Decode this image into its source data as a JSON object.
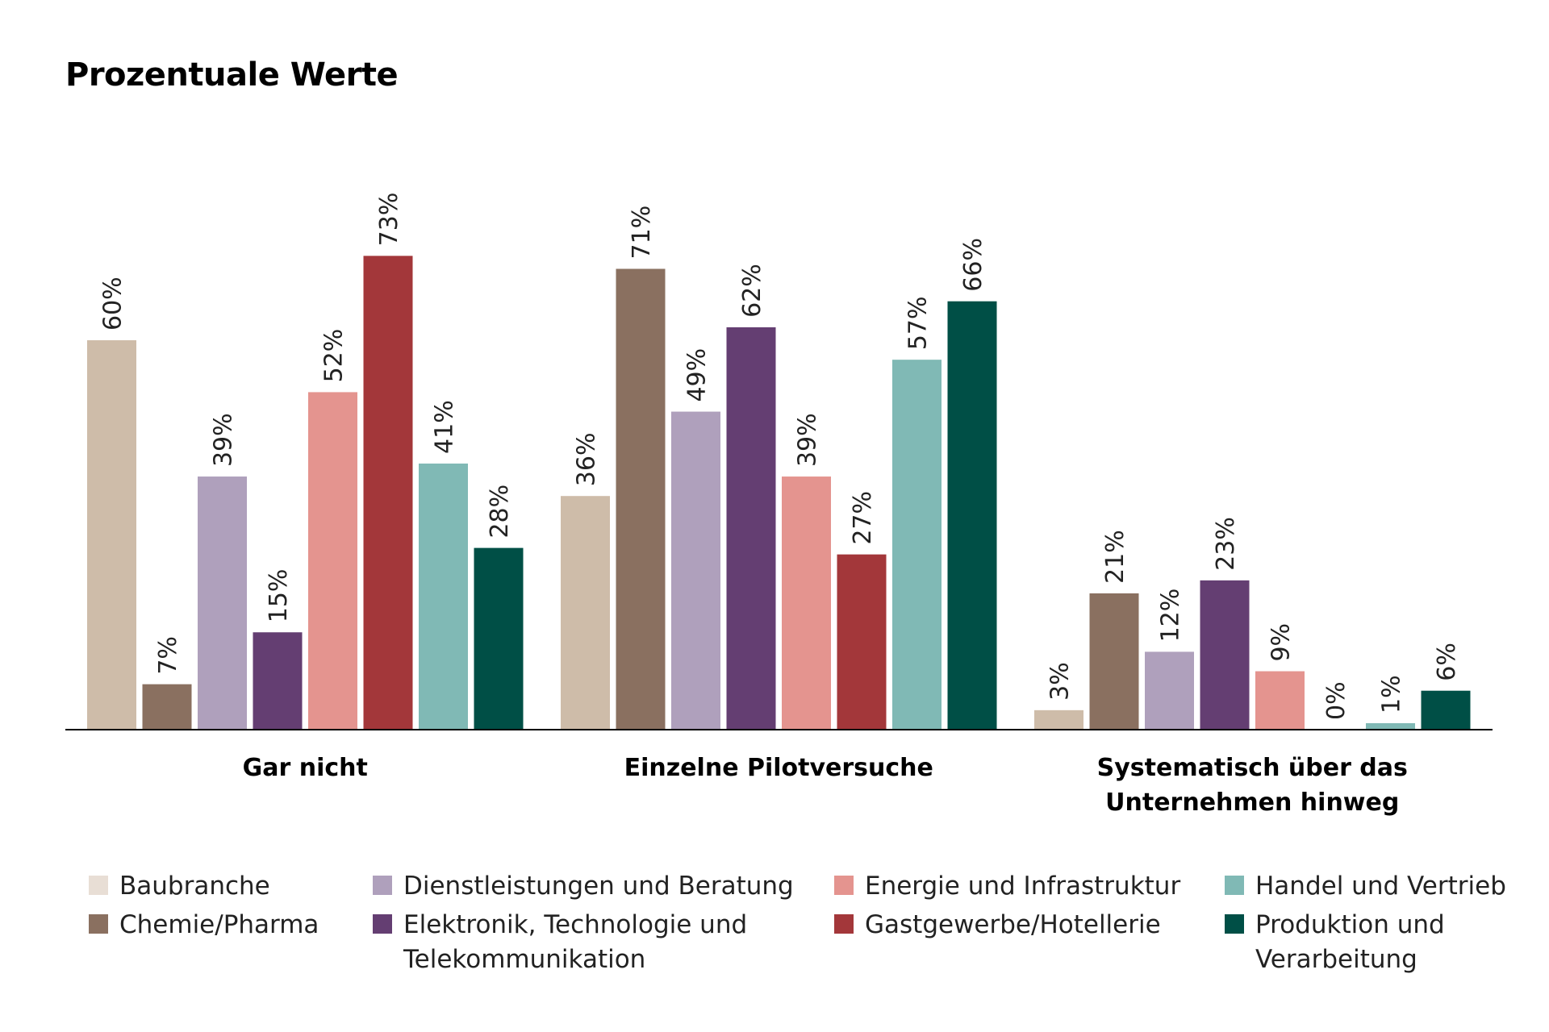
{
  "chart_data": {
    "type": "bar",
    "title": "Prozentuale Werte",
    "categories": [
      "Gar nicht",
      "Einzelne Pilotversuche",
      "Systematisch über das\nUnternehmen hinweg"
    ],
    "ylim": [
      0,
      100
    ],
    "grid": false,
    "legend_position": "bottom",
    "series": [
      {
        "name": "Baubranche",
        "color": "#CEBCA9",
        "legend_color": "#E8DED5",
        "values": [
          60,
          36,
          3
        ]
      },
      {
        "name": "Chemie/Pharma",
        "color": "#8A7060",
        "values": [
          7,
          71,
          21
        ]
      },
      {
        "name": "Dienstleistungen und Beratung",
        "color": "#AFA0BC",
        "values": [
          39,
          49,
          12
        ]
      },
      {
        "name": "Elektronik, Technologie und\nTelekommunikation",
        "color": "#643E72",
        "values": [
          15,
          62,
          23
        ]
      },
      {
        "name": "Energie und Infrastruktur",
        "color": "#E4948F",
        "values": [
          52,
          39,
          9
        ]
      },
      {
        "name": "Gastgewerbe/Hotellerie",
        "color": "#A3373A",
        "values": [
          73,
          27,
          0
        ]
      },
      {
        "name": "Handel und Vertrieb",
        "color": "#80B9B5",
        "values": [
          41,
          57,
          1
        ]
      },
      {
        "name": "Produktion und\nVerarbeitung",
        "color": "#004F46",
        "values": [
          28,
          66,
          6
        ]
      }
    ],
    "value_labels": [
      [
        "60%",
        "36%",
        "3%"
      ],
      [
        "7%",
        "71%",
        "21%"
      ],
      [
        "39%",
        "49%",
        "12%"
      ],
      [
        "15%",
        "62%",
        "23%"
      ],
      [
        "52%",
        "39%",
        "9%"
      ],
      [
        "73%",
        "27%",
        "0%"
      ],
      [
        "41%",
        "57%",
        "1%"
      ],
      [
        "28%",
        "66%",
        "6%"
      ]
    ]
  }
}
